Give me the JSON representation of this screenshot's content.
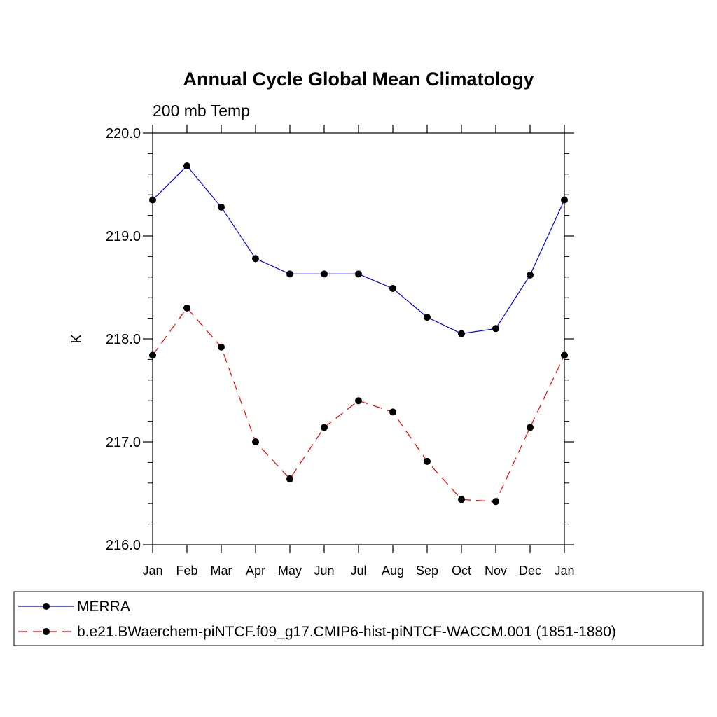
{
  "chart_data": {
    "type": "line",
    "title": "Annual Cycle Global Mean Climatology",
    "subtitle": "200 mb Temp",
    "ylabel": "K",
    "xlabel": "",
    "ylim": [
      216.0,
      220.0
    ],
    "yticks": [
      "216.0",
      "217.0",
      "218.0",
      "219.0",
      "220.0"
    ],
    "categories": [
      "Jan",
      "Feb",
      "Mar",
      "Apr",
      "May",
      "Jun",
      "Jul",
      "Aug",
      "Sep",
      "Oct",
      "Nov",
      "Dec",
      "Jan"
    ],
    "grid": false,
    "legend_position": "bottom",
    "series": [
      {
        "name": "MERRA",
        "color": "#0000ff",
        "dashed": false,
        "values": [
          219.35,
          219.68,
          219.28,
          218.78,
          218.63,
          218.63,
          218.63,
          218.49,
          218.21,
          218.05,
          218.1,
          218.62,
          219.35
        ]
      },
      {
        "name": "b.e21.BWaerchem-piNTCF.f09_g17.CMIP6-hist-piNTCF-WACCM.001 (1851-1880)",
        "color": "#ff0000",
        "dashed": true,
        "values": [
          217.84,
          218.3,
          217.92,
          217.0,
          216.64,
          217.14,
          217.4,
          217.29,
          216.81,
          216.44,
          216.42,
          217.14,
          217.84
        ]
      }
    ]
  }
}
